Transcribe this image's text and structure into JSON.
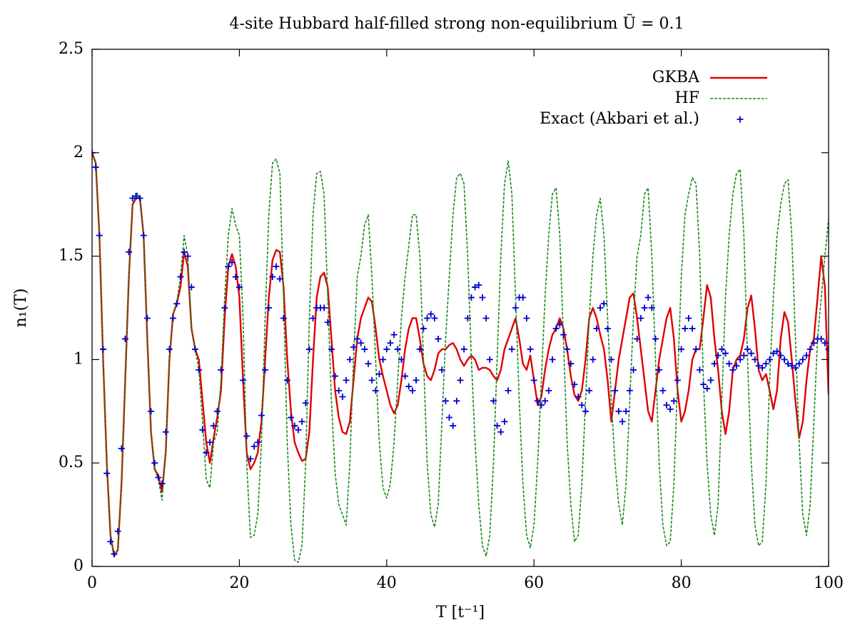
{
  "chart_data": {
    "type": "line",
    "title": "4-site Hubbard half-filled strong non-equilibrium Ũ = 0.1",
    "xlabel": "T [t⁻¹]",
    "ylabel": "n₁(T)",
    "xlim": [
      0,
      100
    ],
    "ylim": [
      0,
      2.5
    ],
    "xticks": [
      0,
      20,
      40,
      60,
      80,
      100
    ],
    "yticks": [
      0,
      0.5,
      1,
      1.5,
      2,
      2.5
    ],
    "grid": false,
    "legend": "upper right",
    "x": [
      0,
      0.5,
      1,
      1.5,
      2,
      2.5,
      3,
      3.5,
      4,
      4.5,
      5,
      5.5,
      6,
      6.5,
      7,
      7.5,
      8,
      8.5,
      9,
      9.5,
      10,
      10.5,
      11,
      11.5,
      12,
      12.5,
      13,
      13.5,
      14,
      14.5,
      15,
      15.5,
      16,
      16.5,
      17,
      17.5,
      18,
      18.5,
      19,
      19.5,
      20,
      20.5,
      21,
      21.5,
      22,
      22.5,
      23,
      23.5,
      24,
      24.5,
      25,
      25.5,
      26,
      26.5,
      27,
      27.5,
      28,
      28.5,
      29,
      29.5,
      30,
      30.5,
      31,
      31.5,
      32,
      32.5,
      33,
      33.5,
      34,
      34.5,
      35,
      35.5,
      36,
      36.5,
      37,
      37.5,
      38,
      38.5,
      39,
      39.5,
      40,
      40.5,
      41,
      41.5,
      42,
      42.5,
      43,
      43.5,
      44,
      44.5,
      45,
      45.5,
      46,
      46.5,
      47,
      47.5,
      48,
      48.5,
      49,
      49.5,
      50,
      50.5,
      51,
      51.5,
      52,
      52.5,
      53,
      53.5,
      54,
      54.5,
      55,
      55.5,
      56,
      56.5,
      57,
      57.5,
      58,
      58.5,
      59,
      59.5,
      60,
      60.5,
      61,
      61.5,
      62,
      62.5,
      63,
      63.5,
      64,
      64.5,
      65,
      65.5,
      66,
      66.5,
      67,
      67.5,
      68,
      68.5,
      69,
      69.5,
      70,
      70.5,
      71,
      71.5,
      72,
      72.5,
      73,
      73.5,
      74,
      74.5,
      75,
      75.5,
      76,
      76.5,
      77,
      77.5,
      78,
      78.5,
      79,
      79.5,
      80,
      80.5,
      81,
      81.5,
      82,
      82.5,
      83,
      83.5,
      84,
      84.5,
      85,
      85.5,
      86,
      86.5,
      87,
      87.5,
      88,
      88.5,
      89,
      89.5,
      90,
      90.5,
      91,
      91.5,
      92,
      92.5,
      93,
      93.5,
      94,
      94.5,
      95,
      95.5,
      96,
      96.5,
      97,
      97.5,
      98,
      98.5,
      99,
      99.5,
      100
    ],
    "series": [
      {
        "name": "GKBA",
        "color": "#e00000",
        "style": "solid",
        "values": [
          2.0,
          1.95,
          1.6,
          1.0,
          0.5,
          0.15,
          0.05,
          0.08,
          0.4,
          0.9,
          1.4,
          1.75,
          1.78,
          1.78,
          1.6,
          1.1,
          0.65,
          0.47,
          0.44,
          0.36,
          0.55,
          1.0,
          1.22,
          1.27,
          1.35,
          1.52,
          1.45,
          1.15,
          1.05,
          1.0,
          0.8,
          0.6,
          0.5,
          0.62,
          0.72,
          0.85,
          1.2,
          1.45,
          1.51,
          1.45,
          1.3,
          0.9,
          0.55,
          0.47,
          0.5,
          0.55,
          0.7,
          1.0,
          1.3,
          1.48,
          1.53,
          1.52,
          1.35,
          1.0,
          0.75,
          0.6,
          0.55,
          0.51,
          0.52,
          0.65,
          1.0,
          1.3,
          1.4,
          1.42,
          1.35,
          1.1,
          0.85,
          0.72,
          0.65,
          0.64,
          0.7,
          0.9,
          1.1,
          1.2,
          1.25,
          1.3,
          1.28,
          1.15,
          1.0,
          0.92,
          0.85,
          0.78,
          0.74,
          0.78,
          0.9,
          1.05,
          1.15,
          1.2,
          1.2,
          1.1,
          0.98,
          0.92,
          0.9,
          0.95,
          1.03,
          1.05,
          1.05,
          1.07,
          1.08,
          1.05,
          1.0,
          0.97,
          1.0,
          1.02,
          1.0,
          0.95,
          0.96,
          0.96,
          0.95,
          0.92,
          0.9,
          0.95,
          1.05,
          1.1,
          1.15,
          1.2,
          1.1,
          0.98,
          0.95,
          1.02,
          0.9,
          0.78,
          0.82,
          0.95,
          1.05,
          1.12,
          1.15,
          1.2,
          1.15,
          1.05,
          0.92,
          0.83,
          0.8,
          0.85,
          1.0,
          1.2,
          1.25,
          1.2,
          1.12,
          1.05,
          0.9,
          0.7,
          0.85,
          1.0,
          1.1,
          1.2,
          1.3,
          1.32,
          1.2,
          1.05,
          0.9,
          0.75,
          0.7,
          0.85,
          1.0,
          1.1,
          1.2,
          1.25,
          1.1,
          0.85,
          0.7,
          0.75,
          0.85,
          1.0,
          1.05,
          1.05,
          1.2,
          1.36,
          1.3,
          1.1,
          0.95,
          0.75,
          0.64,
          0.75,
          0.95,
          1.0,
          1.02,
          1.1,
          1.25,
          1.31,
          1.15,
          0.95,
          0.9,
          0.93,
          0.85,
          0.76,
          0.85,
          1.1,
          1.23,
          1.18,
          1.0,
          0.8,
          0.62,
          0.7,
          0.9,
          1.05,
          1.1,
          1.3,
          1.5,
          1.35,
          0.83
        ]
      },
      {
        "name": "HF",
        "color": "#1a8a1a",
        "style": "dashed",
        "values": [
          2.0,
          1.95,
          1.6,
          1.0,
          0.5,
          0.15,
          0.05,
          0.08,
          0.4,
          0.9,
          1.4,
          1.75,
          1.81,
          1.78,
          1.6,
          1.1,
          0.65,
          0.47,
          0.42,
          0.32,
          0.55,
          1.0,
          1.22,
          1.28,
          1.4,
          1.6,
          1.5,
          1.15,
          1.05,
          0.95,
          0.7,
          0.42,
          0.38,
          0.6,
          0.65,
          0.9,
          1.3,
          1.6,
          1.73,
          1.65,
          1.6,
          1.2,
          0.5,
          0.14,
          0.15,
          0.25,
          0.6,
          1.2,
          1.7,
          1.95,
          1.97,
          1.9,
          1.3,
          0.6,
          0.2,
          0.03,
          0.02,
          0.1,
          0.5,
          1.2,
          1.7,
          1.9,
          1.91,
          1.8,
          1.3,
          0.8,
          0.45,
          0.3,
          0.25,
          0.2,
          0.5,
          1.0,
          1.4,
          1.5,
          1.65,
          1.7,
          1.4,
          1.0,
          0.6,
          0.38,
          0.33,
          0.4,
          0.6,
          0.9,
          1.2,
          1.4,
          1.55,
          1.7,
          1.7,
          1.5,
          1.0,
          0.5,
          0.25,
          0.19,
          0.3,
          0.7,
          1.1,
          1.4,
          1.7,
          1.88,
          1.9,
          1.85,
          1.5,
          1.0,
          0.6,
          0.3,
          0.1,
          0.05,
          0.15,
          0.5,
          1.0,
          1.5,
          1.85,
          1.96,
          1.8,
          1.3,
          0.8,
          0.4,
          0.15,
          0.09,
          0.2,
          0.5,
          0.9,
          1.3,
          1.6,
          1.8,
          1.83,
          1.6,
          1.1,
          0.6,
          0.3,
          0.12,
          0.15,
          0.4,
          0.8,
          1.2,
          1.5,
          1.7,
          1.78,
          1.6,
          1.2,
          0.8,
          0.5,
          0.3,
          0.2,
          0.4,
          0.8,
          1.2,
          1.5,
          1.6,
          1.8,
          1.83,
          1.5,
          1.0,
          0.5,
          0.2,
          0.1,
          0.12,
          0.4,
          0.9,
          1.4,
          1.7,
          1.8,
          1.88,
          1.85,
          1.5,
          0.9,
          0.5,
          0.25,
          0.15,
          0.3,
          0.8,
          1.3,
          1.6,
          1.8,
          1.9,
          1.92,
          1.6,
          1.0,
          0.5,
          0.2,
          0.1,
          0.12,
          0.4,
          0.9,
          1.3,
          1.6,
          1.75,
          1.85,
          1.87,
          1.6,
          1.1,
          0.6,
          0.25,
          0.15,
          0.3,
          0.7,
          1.1,
          1.3,
          1.5,
          1.68
        ]
      },
      {
        "name": "Exact (Akbari et al.)",
        "color": "#0000d0",
        "style": "points",
        "values": [
          2.0,
          1.93,
          1.6,
          1.05,
          0.45,
          0.12,
          0.06,
          0.17,
          0.57,
          1.1,
          1.52,
          1.78,
          1.79,
          1.78,
          1.6,
          1.2,
          0.75,
          0.5,
          0.43,
          0.4,
          0.65,
          1.05,
          1.2,
          1.27,
          1.4,
          1.52,
          1.5,
          1.35,
          1.05,
          0.95,
          0.66,
          0.55,
          0.6,
          0.68,
          0.75,
          0.95,
          1.25,
          1.45,
          1.47,
          1.4,
          1.35,
          0.9,
          0.63,
          0.52,
          0.58,
          0.6,
          0.73,
          0.95,
          1.25,
          1.4,
          1.45,
          1.39,
          1.2,
          0.9,
          0.72,
          0.68,
          0.66,
          0.7,
          0.79,
          1.05,
          1.2,
          1.25,
          1.25,
          1.25,
          1.18,
          1.05,
          0.92,
          0.85,
          0.82,
          0.9,
          1.0,
          1.06,
          1.1,
          1.08,
          1.05,
          0.98,
          0.9,
          0.85,
          0.93,
          1.0,
          1.05,
          1.08,
          1.12,
          1.05,
          1.0,
          0.92,
          0.87,
          0.85,
          0.9,
          1.05,
          1.15,
          1.2,
          1.22,
          1.2,
          1.1,
          0.95,
          0.8,
          0.72,
          0.68,
          0.8,
          0.9,
          1.05,
          1.2,
          1.3,
          1.35,
          1.36,
          1.3,
          1.2,
          1.0,
          0.8,
          0.68,
          0.65,
          0.7,
          0.85,
          1.05,
          1.25,
          1.3,
          1.3,
          1.2,
          1.05,
          0.9,
          0.8,
          0.78,
          0.8,
          0.85,
          1.0,
          1.15,
          1.17,
          1.12,
          1.05,
          0.98,
          0.88,
          0.82,
          0.78,
          0.75,
          0.85,
          1.0,
          1.15,
          1.25,
          1.27,
          1.15,
          1.0,
          0.85,
          0.75,
          0.7,
          0.75,
          0.85,
          0.95,
          1.1,
          1.2,
          1.25,
          1.3,
          1.25,
          1.1,
          0.95,
          0.85,
          0.78,
          0.76,
          0.8,
          0.9,
          1.05,
          1.15,
          1.2,
          1.15,
          1.05,
          0.95,
          0.88,
          0.86,
          0.9,
          0.98,
          1.02,
          1.05,
          1.03,
          0.98,
          0.95,
          0.97,
          1.0,
          1.02,
          1.05,
          1.03,
          1.0,
          0.97,
          0.96,
          0.98,
          1.0,
          1.03,
          1.04,
          1.02,
          1.0,
          0.98,
          0.97,
          0.96,
          0.98,
          1.0,
          1.02,
          1.05,
          1.08,
          1.1,
          1.1,
          1.08,
          1.05
        ]
      }
    ]
  }
}
